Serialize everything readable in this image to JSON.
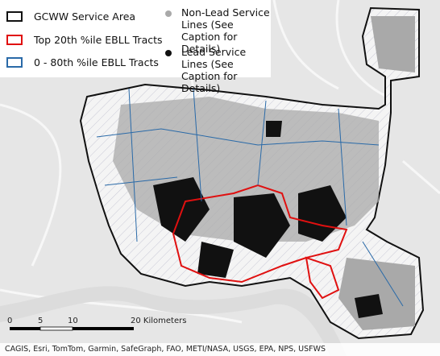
{
  "legend": [
    "GCWW Service Area",
    "Top 20th %ile EBLL Tracts",
    "0 - 80th %ile EBLL Tracts",
    "Non-Lead Service Lines (See Caption for Details)",
    "Lead Service Lines (See Caption for Details)"
  ],
  "scale_bar": [
    "0",
    "5",
    "10",
    "20 Kilometers"
  ],
  "attribution": "CAGIS, Esri, TomTom, Garmin, SafeGraph, FAO, METI/NASA, USGS, EPA, NPS, USFWS"
}
